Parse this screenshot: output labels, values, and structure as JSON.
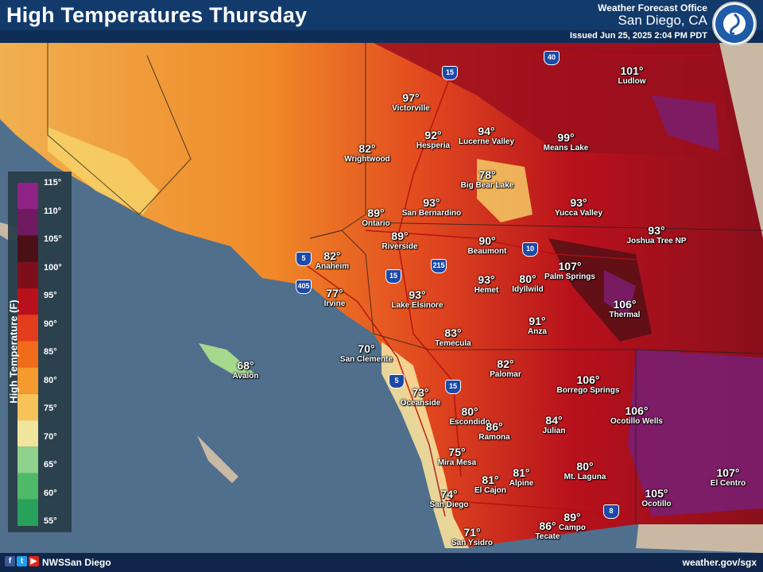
{
  "header": {
    "title": "High Temperatures Thursday",
    "office_line1": "Weather Forecast Office",
    "office_line2": "San Diego, CA",
    "issued": "Issued Jun 25, 2025 2:04 PM PDT"
  },
  "footer": {
    "handle": "NWSSan Diego",
    "site": "weather.gov/sgx"
  },
  "legend": {
    "title": "High Temperature (F)",
    "ticks": [
      "115°",
      "110°",
      "105°",
      "100°",
      "95°",
      "90°",
      "85°",
      "80°",
      "75°",
      "70°",
      "65°",
      "60°",
      "55°"
    ],
    "colors": [
      "#8f2386",
      "#6f1b5f",
      "#4a1015",
      "#7d0e1a",
      "#b8111c",
      "#e33d1e",
      "#f06c1b",
      "#f59a2f",
      "#f7c25a",
      "#f0e59a",
      "#8ed28d",
      "#4fb96a",
      "#28a15a"
    ]
  },
  "interstates": [
    {
      "label": "40",
      "icon": "interstate-shield-icon"
    },
    {
      "label": "15",
      "icon": "interstate-shield-icon"
    },
    {
      "label": "5",
      "icon": "interstate-shield-icon"
    },
    {
      "label": "405",
      "icon": "interstate-shield-icon"
    },
    {
      "label": "215",
      "icon": "interstate-shield-icon"
    },
    {
      "label": "15",
      "icon": "interstate-shield-icon"
    },
    {
      "label": "10",
      "icon": "interstate-shield-icon"
    },
    {
      "label": "5",
      "icon": "interstate-shield-icon"
    },
    {
      "label": "15",
      "icon": "interstate-shield-icon"
    },
    {
      "label": "8",
      "icon": "interstate-shield-icon"
    }
  ],
  "places": [
    {
      "temp": "101°",
      "name": "Ludlow"
    },
    {
      "temp": "97°",
      "name": "Victorville"
    },
    {
      "temp": "92°",
      "name": "Hesperia"
    },
    {
      "temp": "94°",
      "name": "Lucerne Valley"
    },
    {
      "temp": "99°",
      "name": "Means Lake"
    },
    {
      "temp": "82°",
      "name": "Wrightwood"
    },
    {
      "temp": "78°",
      "name": "Big Bear Lake"
    },
    {
      "temp": "93°",
      "name": "San Bernardino"
    },
    {
      "temp": "93°",
      "name": "Yucca Valley"
    },
    {
      "temp": "89°",
      "name": "Ontario"
    },
    {
      "temp": "89°",
      "name": "Riverside"
    },
    {
      "temp": "90°",
      "name": "Beaumont"
    },
    {
      "temp": "93°",
      "name": "Joshua Tree NP"
    },
    {
      "temp": "82°",
      "name": "Anaheim"
    },
    {
      "temp": "107°",
      "name": "Palm Springs"
    },
    {
      "temp": "80°",
      "name": "Idyllwild"
    },
    {
      "temp": "93°",
      "name": "Hemet"
    },
    {
      "temp": "77°",
      "name": "Irvine"
    },
    {
      "temp": "93°",
      "name": "Lake Elsinore"
    },
    {
      "temp": "106°",
      "name": "Thermal"
    },
    {
      "temp": "91°",
      "name": "Anza"
    },
    {
      "temp": "83°",
      "name": "Temecula"
    },
    {
      "temp": "70°",
      "name": "San Clemente"
    },
    {
      "temp": "68°",
      "name": "Avalon"
    },
    {
      "temp": "82°",
      "name": "Palomar"
    },
    {
      "temp": "106°",
      "name": "Borrego Springs"
    },
    {
      "temp": "73°",
      "name": "Oceanside"
    },
    {
      "temp": "80°",
      "name": "Escondido"
    },
    {
      "temp": "86°",
      "name": "Ramona"
    },
    {
      "temp": "84°",
      "name": "Julian"
    },
    {
      "temp": "106°",
      "name": "Ocotillo Wells"
    },
    {
      "temp": "75°",
      "name": "Mira Mesa"
    },
    {
      "temp": "81°",
      "name": "El Cajon"
    },
    {
      "temp": "81°",
      "name": "Alpine"
    },
    {
      "temp": "80°",
      "name": "Mt. Laguna"
    },
    {
      "temp": "107°",
      "name": "El Centro"
    },
    {
      "temp": "74°",
      "name": "San Diego"
    },
    {
      "temp": "105°",
      "name": "Ocotillo"
    },
    {
      "temp": "89°",
      "name": "Campo"
    },
    {
      "temp": "86°",
      "name": "Tecate"
    },
    {
      "temp": "71°",
      "name": "San Ysidro"
    }
  ]
}
